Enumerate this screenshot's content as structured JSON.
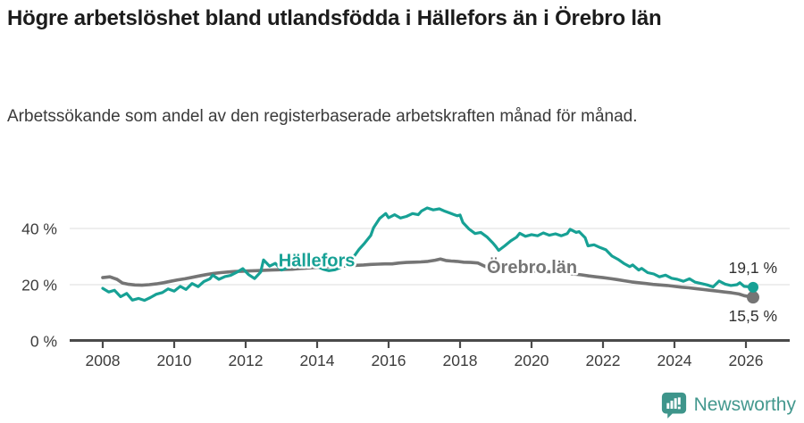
{
  "header": {
    "title": "Högre arbetslöshet bland utlandsfödda i Hällefors än i Örebro län",
    "subtitle": "Arbetssökande som andel av den registerbaserade arbetskraften månad för månad."
  },
  "footer": {
    "brand": "Newsworthy",
    "brand_color": "#43988e",
    "logo_icon": "newsworthy-speech-bubble-bar-chart-icon"
  },
  "chart_data": {
    "type": "line",
    "title": "Högre arbetslöshet bland utlandsfödda i Hällefors än i Örebro län",
    "xlabel": "",
    "ylabel": "Arbetssökande som andel av den registerbaserade arbetskraften",
    "grid": "horizontal-only",
    "legend_position": "inline-line-labels",
    "x_axis": {
      "ticks": [
        2008,
        2010,
        2012,
        2014,
        2016,
        2018,
        2020,
        2022,
        2024,
        2026
      ],
      "range": [
        2007.55,
        2026.75
      ]
    },
    "y_axis": {
      "ticks": [
        {
          "value": 0,
          "label": "0 %"
        },
        {
          "value": 20,
          "label": "20 %"
        },
        {
          "value": 40,
          "label": "40 %"
        }
      ],
      "range": [
        0,
        51
      ]
    },
    "colors": {
      "grid": "#e3e3e3",
      "axis": "#4a4a4a",
      "tick_text": "#3d3d3d"
    },
    "series": [
      {
        "name": "Örebro län",
        "color": "#757575",
        "end_label": "15,5 %",
        "end_value": 15.5,
        "line_label_pos": [
          2018.75,
          24.1
        ],
        "points": [
          [
            2008.0,
            22.5
          ],
          [
            2008.2,
            22.8
          ],
          [
            2008.4,
            21.9
          ],
          [
            2008.55,
            20.6
          ],
          [
            2008.7,
            20.2
          ],
          [
            2008.9,
            19.9
          ],
          [
            2009.1,
            19.8
          ],
          [
            2009.3,
            20.0
          ],
          [
            2009.5,
            20.3
          ],
          [
            2009.7,
            20.7
          ],
          [
            2009.9,
            21.2
          ],
          [
            2010.1,
            21.7
          ],
          [
            2010.3,
            22.1
          ],
          [
            2010.5,
            22.6
          ],
          [
            2010.7,
            23.1
          ],
          [
            2010.9,
            23.6
          ],
          [
            2011.1,
            24.0
          ],
          [
            2011.3,
            24.3
          ],
          [
            2011.5,
            24.5
          ],
          [
            2011.7,
            24.7
          ],
          [
            2011.9,
            24.8
          ],
          [
            2012.1,
            24.9
          ],
          [
            2012.3,
            25.0
          ],
          [
            2012.5,
            25.1
          ],
          [
            2012.7,
            25.2
          ],
          [
            2012.9,
            25.3
          ],
          [
            2013.1,
            25.4
          ],
          [
            2013.3,
            25.5
          ],
          [
            2013.5,
            25.7
          ],
          [
            2013.7,
            25.9
          ],
          [
            2013.9,
            26.1
          ],
          [
            2014.1,
            26.3
          ],
          [
            2014.3,
            26.4
          ],
          [
            2014.5,
            26.5
          ],
          [
            2014.7,
            26.6
          ],
          [
            2014.9,
            26.7
          ],
          [
            2015.1,
            26.9
          ],
          [
            2015.3,
            27.0
          ],
          [
            2015.5,
            27.2
          ],
          [
            2015.7,
            27.3
          ],
          [
            2015.9,
            27.4
          ],
          [
            2016.1,
            27.4
          ],
          [
            2016.3,
            27.7
          ],
          [
            2016.5,
            27.9
          ],
          [
            2016.7,
            28.0
          ],
          [
            2016.9,
            28.1
          ],
          [
            2017.1,
            28.3
          ],
          [
            2017.3,
            28.7
          ],
          [
            2017.45,
            29.1
          ],
          [
            2017.6,
            28.6
          ],
          [
            2017.75,
            28.4
          ],
          [
            2017.92,
            28.3
          ],
          [
            2018.1,
            28.0
          ],
          [
            2018.3,
            27.9
          ],
          [
            2018.5,
            27.7
          ],
          [
            2018.7,
            26.5
          ],
          [
            2018.85,
            25.8
          ],
          [
            2019.0,
            25.6
          ],
          [
            2019.3,
            25.4
          ],
          [
            2019.6,
            25.2
          ],
          [
            2019.9,
            25.0
          ],
          [
            2020.2,
            24.8
          ],
          [
            2020.5,
            24.6
          ],
          [
            2020.8,
            24.3
          ],
          [
            2021.1,
            23.9
          ],
          [
            2021.4,
            23.5
          ],
          [
            2021.6,
            23.1
          ],
          [
            2021.8,
            22.8
          ],
          [
            2022.0,
            22.5
          ],
          [
            2022.2,
            22.2
          ],
          [
            2022.4,
            21.8
          ],
          [
            2022.6,
            21.4
          ],
          [
            2022.8,
            21.0
          ],
          [
            2023.0,
            20.7
          ],
          [
            2023.2,
            20.4
          ],
          [
            2023.4,
            20.1
          ],
          [
            2023.6,
            19.9
          ],
          [
            2023.8,
            19.7
          ],
          [
            2024.0,
            19.4
          ],
          [
            2024.2,
            19.1
          ],
          [
            2024.4,
            18.9
          ],
          [
            2024.6,
            18.6
          ],
          [
            2024.8,
            18.3
          ],
          [
            2025.0,
            18.0
          ],
          [
            2025.2,
            17.7
          ],
          [
            2025.4,
            17.4
          ],
          [
            2025.6,
            17.1
          ],
          [
            2025.8,
            16.7
          ],
          [
            2025.95,
            16.1
          ],
          [
            2026.2,
            15.5
          ]
        ]
      },
      {
        "name": "Hällefors",
        "color": "#17a195",
        "end_label": "19,1 %",
        "end_value": 19.1,
        "line_label_pos": [
          2012.92,
          26.5
        ],
        "points": [
          [
            2008.0,
            18.7
          ],
          [
            2008.17,
            17.4
          ],
          [
            2008.33,
            18.0
          ],
          [
            2008.5,
            15.7
          ],
          [
            2008.67,
            16.9
          ],
          [
            2008.83,
            14.5
          ],
          [
            2009.0,
            15.1
          ],
          [
            2009.17,
            14.4
          ],
          [
            2009.33,
            15.4
          ],
          [
            2009.5,
            16.6
          ],
          [
            2009.67,
            17.2
          ],
          [
            2009.83,
            18.5
          ],
          [
            2010.0,
            17.7
          ],
          [
            2010.17,
            19.4
          ],
          [
            2010.33,
            18.3
          ],
          [
            2010.5,
            20.4
          ],
          [
            2010.67,
            19.3
          ],
          [
            2010.83,
            21.1
          ],
          [
            2011.0,
            22.1
          ],
          [
            2011.08,
            23.4
          ],
          [
            2011.25,
            21.9
          ],
          [
            2011.42,
            22.9
          ],
          [
            2011.58,
            23.3
          ],
          [
            2011.75,
            24.4
          ],
          [
            2011.92,
            25.7
          ],
          [
            2012.08,
            23.6
          ],
          [
            2012.25,
            22.2
          ],
          [
            2012.42,
            24.5
          ],
          [
            2012.5,
            28.8
          ],
          [
            2012.67,
            26.6
          ],
          [
            2012.83,
            27.6
          ],
          [
            2013.0,
            25.2
          ],
          [
            2013.17,
            26.0
          ],
          [
            2013.33,
            27.9
          ],
          [
            2013.5,
            26.3
          ],
          [
            2013.67,
            26.8
          ],
          [
            2013.83,
            28.2
          ],
          [
            2014.0,
            26.4
          ],
          [
            2014.17,
            25.5
          ],
          [
            2014.33,
            25.0
          ],
          [
            2014.5,
            25.3
          ],
          [
            2014.67,
            26.2
          ],
          [
            2014.83,
            27.5
          ],
          [
            2015.0,
            29.5
          ],
          [
            2015.17,
            32.5
          ],
          [
            2015.33,
            34.8
          ],
          [
            2015.5,
            37.5
          ],
          [
            2015.58,
            40.3
          ],
          [
            2015.75,
            43.6
          ],
          [
            2015.92,
            45.3
          ],
          [
            2016.0,
            43.8
          ],
          [
            2016.17,
            44.9
          ],
          [
            2016.33,
            43.7
          ],
          [
            2016.5,
            44.3
          ],
          [
            2016.67,
            45.3
          ],
          [
            2016.83,
            44.9
          ],
          [
            2016.92,
            46.2
          ],
          [
            2017.08,
            47.3
          ],
          [
            2017.25,
            46.6
          ],
          [
            2017.42,
            47.0
          ],
          [
            2017.58,
            46.1
          ],
          [
            2017.75,
            45.3
          ],
          [
            2017.92,
            44.5
          ],
          [
            2018.0,
            44.8
          ],
          [
            2018.08,
            42.1
          ],
          [
            2018.25,
            39.8
          ],
          [
            2018.42,
            38.2
          ],
          [
            2018.58,
            38.6
          ],
          [
            2018.75,
            37.0
          ],
          [
            2018.92,
            34.8
          ],
          [
            2019.0,
            33.6
          ],
          [
            2019.08,
            32.2
          ],
          [
            2019.25,
            33.8
          ],
          [
            2019.42,
            35.6
          ],
          [
            2019.58,
            36.9
          ],
          [
            2019.67,
            38.3
          ],
          [
            2019.83,
            37.2
          ],
          [
            2020.0,
            37.8
          ],
          [
            2020.17,
            37.4
          ],
          [
            2020.33,
            38.4
          ],
          [
            2020.5,
            37.6
          ],
          [
            2020.67,
            38.1
          ],
          [
            2020.83,
            37.4
          ],
          [
            2021.0,
            38.2
          ],
          [
            2021.08,
            39.7
          ],
          [
            2021.25,
            38.6
          ],
          [
            2021.33,
            38.9
          ],
          [
            2021.5,
            36.7
          ],
          [
            2021.58,
            33.8
          ],
          [
            2021.75,
            34.2
          ],
          [
            2021.92,
            33.2
          ],
          [
            2022.08,
            32.4
          ],
          [
            2022.25,
            30.2
          ],
          [
            2022.42,
            29.0
          ],
          [
            2022.58,
            27.6
          ],
          [
            2022.75,
            26.4
          ],
          [
            2022.83,
            27.0
          ],
          [
            2023.0,
            25.2
          ],
          [
            2023.08,
            25.8
          ],
          [
            2023.25,
            24.3
          ],
          [
            2023.42,
            23.8
          ],
          [
            2023.58,
            22.8
          ],
          [
            2023.75,
            23.4
          ],
          [
            2023.92,
            22.3
          ],
          [
            2024.08,
            21.9
          ],
          [
            2024.25,
            21.2
          ],
          [
            2024.42,
            22.1
          ],
          [
            2024.58,
            20.9
          ],
          [
            2024.75,
            20.4
          ],
          [
            2024.92,
            19.9
          ],
          [
            2025.08,
            19.2
          ],
          [
            2025.25,
            21.3
          ],
          [
            2025.42,
            20.2
          ],
          [
            2025.58,
            19.7
          ],
          [
            2025.75,
            20.0
          ],
          [
            2025.83,
            20.7
          ],
          [
            2025.95,
            19.4
          ],
          [
            2026.2,
            19.1
          ]
        ]
      }
    ]
  }
}
